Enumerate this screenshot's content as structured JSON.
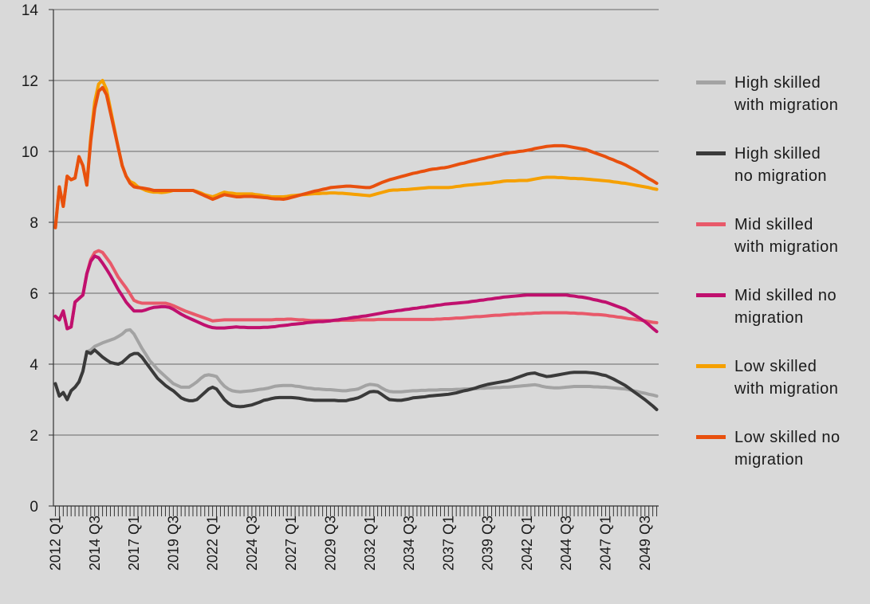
{
  "chart_data": {
    "type": "line",
    "categories": [
      "2012 Q1",
      null,
      null,
      null,
      null,
      null,
      null,
      null,
      null,
      null,
      "2014 Q3",
      null,
      null,
      null,
      null,
      null,
      null,
      null,
      null,
      null,
      "2017 Q1",
      null,
      null,
      null,
      null,
      null,
      null,
      null,
      null,
      null,
      "2019 Q3",
      null,
      null,
      null,
      null,
      null,
      null,
      null,
      null,
      null,
      "2022 Q1",
      null,
      null,
      null,
      null,
      null,
      null,
      null,
      null,
      null,
      "2024 Q3",
      null,
      null,
      null,
      null,
      null,
      null,
      null,
      null,
      null,
      "2027 Q1",
      null,
      null,
      null,
      null,
      null,
      null,
      null,
      null,
      null,
      "2029 Q3",
      null,
      null,
      null,
      null,
      null,
      null,
      null,
      null,
      null,
      "2032 Q1",
      null,
      null,
      null,
      null,
      null,
      null,
      null,
      null,
      null,
      "2034 Q3",
      null,
      null,
      null,
      null,
      null,
      null,
      null,
      null,
      null,
      "2037 Q1",
      null,
      null,
      null,
      null,
      null,
      null,
      null,
      null,
      null,
      "2039 Q3",
      null,
      null,
      null,
      null,
      null,
      null,
      null,
      null,
      null,
      "2042 Q1",
      null,
      null,
      null,
      null,
      null,
      null,
      null,
      null,
      null,
      "2044 Q3",
      null,
      null,
      null,
      null,
      null,
      null,
      null,
      null,
      null,
      "2047 Q1",
      null,
      null,
      null,
      null,
      null,
      null,
      null,
      null,
      null,
      "2049 Q3",
      null,
      null,
      null
    ],
    "ylim": [
      0,
      14
    ],
    "yticks": [
      0,
      2,
      4,
      6,
      8,
      10,
      12,
      14
    ],
    "grid": true,
    "series": [
      {
        "name": "High skilled with migration",
        "color": "#a3a3a3",
        "values": [
          3.45,
          3.1,
          3.2,
          3.0,
          3.25,
          3.35,
          3.5,
          3.8,
          4.35,
          4.4,
          4.5,
          4.55,
          4.6,
          4.64,
          4.68,
          4.72,
          4.78,
          4.85,
          4.95,
          4.97,
          4.85,
          4.65,
          4.45,
          4.28,
          4.1,
          3.98,
          3.85,
          3.75,
          3.65,
          3.55,
          3.45,
          3.4,
          3.35,
          3.35,
          3.35,
          3.42,
          3.5,
          3.6,
          3.68,
          3.7,
          3.68,
          3.65,
          3.5,
          3.38,
          3.3,
          3.25,
          3.23,
          3.22,
          3.23,
          3.24,
          3.25,
          3.27,
          3.29,
          3.3,
          3.32,
          3.35,
          3.38,
          3.39,
          3.4,
          3.4,
          3.4,
          3.38,
          3.37,
          3.35,
          3.33,
          3.32,
          3.3,
          3.3,
          3.29,
          3.28,
          3.28,
          3.27,
          3.26,
          3.25,
          3.25,
          3.27,
          3.28,
          3.3,
          3.35,
          3.4,
          3.43,
          3.42,
          3.4,
          3.33,
          3.27,
          3.23,
          3.22,
          3.22,
          3.22,
          3.23,
          3.24,
          3.25,
          3.25,
          3.26,
          3.26,
          3.27,
          3.27,
          3.27,
          3.28,
          3.28,
          3.28,
          3.28,
          3.29,
          3.29,
          3.3,
          3.3,
          3.31,
          3.31,
          3.32,
          3.32,
          3.33,
          3.33,
          3.34,
          3.34,
          3.35,
          3.35,
          3.36,
          3.37,
          3.38,
          3.39,
          3.4,
          3.41,
          3.42,
          3.4,
          3.37,
          3.35,
          3.34,
          3.33,
          3.33,
          3.34,
          3.35,
          3.36,
          3.37,
          3.37,
          3.37,
          3.37,
          3.37,
          3.36,
          3.36,
          3.35,
          3.35,
          3.34,
          3.33,
          3.32,
          3.31,
          3.3,
          3.28,
          3.25,
          3.23,
          3.2,
          3.18,
          3.15,
          3.13,
          3.1
        ]
      },
      {
        "name": "High skilled no migration",
        "color": "#3a3a3a",
        "values": [
          3.45,
          3.1,
          3.2,
          3.0,
          3.25,
          3.35,
          3.5,
          3.8,
          4.35,
          4.3,
          4.4,
          4.3,
          4.2,
          4.12,
          4.05,
          4.02,
          4.0,
          4.05,
          4.15,
          4.25,
          4.3,
          4.3,
          4.2,
          4.05,
          3.9,
          3.75,
          3.6,
          3.5,
          3.4,
          3.32,
          3.25,
          3.15,
          3.05,
          3.0,
          2.97,
          2.97,
          3.0,
          3.1,
          3.2,
          3.3,
          3.35,
          3.3,
          3.15,
          3.0,
          2.9,
          2.83,
          2.81,
          2.8,
          2.81,
          2.83,
          2.85,
          2.89,
          2.93,
          2.98,
          3.0,
          3.03,
          3.05,
          3.06,
          3.06,
          3.06,
          3.06,
          3.05,
          3.04,
          3.02,
          3.0,
          2.99,
          2.98,
          2.98,
          2.98,
          2.98,
          2.98,
          2.98,
          2.97,
          2.97,
          2.97,
          3.0,
          3.02,
          3.05,
          3.1,
          3.16,
          3.22,
          3.23,
          3.22,
          3.15,
          3.07,
          3.0,
          2.99,
          2.98,
          2.98,
          3.0,
          3.02,
          3.05,
          3.06,
          3.07,
          3.08,
          3.1,
          3.11,
          3.12,
          3.13,
          3.14,
          3.15,
          3.17,
          3.19,
          3.22,
          3.25,
          3.27,
          3.3,
          3.33,
          3.37,
          3.4,
          3.43,
          3.45,
          3.47,
          3.49,
          3.51,
          3.53,
          3.56,
          3.6,
          3.64,
          3.68,
          3.72,
          3.74,
          3.75,
          3.71,
          3.68,
          3.65,
          3.66,
          3.68,
          3.7,
          3.72,
          3.74,
          3.76,
          3.77,
          3.77,
          3.77,
          3.77,
          3.76,
          3.75,
          3.73,
          3.7,
          3.68,
          3.63,
          3.58,
          3.52,
          3.46,
          3.4,
          3.32,
          3.24,
          3.16,
          3.08,
          3.0,
          2.91,
          2.82,
          2.72
        ]
      },
      {
        "name": "Mid skilled with migration",
        "color": "#e8596a",
        "values": [
          5.35,
          5.25,
          5.5,
          5.0,
          5.05,
          5.75,
          5.85,
          5.95,
          6.55,
          6.95,
          7.15,
          7.2,
          7.15,
          7.0,
          6.85,
          6.65,
          6.45,
          6.3,
          6.15,
          5.98,
          5.8,
          5.75,
          5.72,
          5.72,
          5.72,
          5.72,
          5.72,
          5.72,
          5.72,
          5.69,
          5.65,
          5.6,
          5.55,
          5.5,
          5.46,
          5.42,
          5.38,
          5.34,
          5.3,
          5.26,
          5.22,
          5.23,
          5.24,
          5.25,
          5.25,
          5.25,
          5.25,
          5.25,
          5.25,
          5.25,
          5.25,
          5.25,
          5.25,
          5.25,
          5.25,
          5.25,
          5.26,
          5.26,
          5.26,
          5.27,
          5.27,
          5.26,
          5.25,
          5.25,
          5.24,
          5.23,
          5.23,
          5.23,
          5.23,
          5.23,
          5.23,
          5.23,
          5.23,
          5.24,
          5.24,
          5.24,
          5.24,
          5.25,
          5.25,
          5.25,
          5.25,
          5.25,
          5.26,
          5.26,
          5.26,
          5.26,
          5.26,
          5.26,
          5.26,
          5.26,
          5.26,
          5.26,
          5.26,
          5.26,
          5.26,
          5.26,
          5.26,
          5.27,
          5.27,
          5.28,
          5.28,
          5.29,
          5.3,
          5.3,
          5.31,
          5.32,
          5.33,
          5.34,
          5.34,
          5.35,
          5.36,
          5.37,
          5.38,
          5.38,
          5.39,
          5.4,
          5.41,
          5.41,
          5.42,
          5.42,
          5.43,
          5.43,
          5.44,
          5.44,
          5.45,
          5.45,
          5.45,
          5.45,
          5.45,
          5.45,
          5.45,
          5.44,
          5.44,
          5.43,
          5.43,
          5.42,
          5.41,
          5.4,
          5.4,
          5.39,
          5.38,
          5.36,
          5.35,
          5.33,
          5.32,
          5.3,
          5.28,
          5.27,
          5.25,
          5.24,
          5.22,
          5.2,
          5.18,
          5.17
        ]
      },
      {
        "name": "Mid skilled no migration",
        "color": "#c0106e",
        "values": [
          5.35,
          5.25,
          5.5,
          5.0,
          5.05,
          5.75,
          5.85,
          5.95,
          6.55,
          6.9,
          7.05,
          7.0,
          6.85,
          6.68,
          6.5,
          6.3,
          6.1,
          5.93,
          5.75,
          5.62,
          5.5,
          5.5,
          5.5,
          5.53,
          5.57,
          5.6,
          5.61,
          5.62,
          5.62,
          5.6,
          5.55,
          5.48,
          5.41,
          5.35,
          5.3,
          5.25,
          5.2,
          5.15,
          5.1,
          5.06,
          5.03,
          5.02,
          5.02,
          5.02,
          5.03,
          5.04,
          5.05,
          5.04,
          5.04,
          5.03,
          5.03,
          5.03,
          5.03,
          5.04,
          5.04,
          5.05,
          5.06,
          5.08,
          5.09,
          5.1,
          5.12,
          5.13,
          5.14,
          5.15,
          5.17,
          5.18,
          5.19,
          5.2,
          5.2,
          5.21,
          5.22,
          5.24,
          5.25,
          5.27,
          5.28,
          5.3,
          5.32,
          5.33,
          5.35,
          5.36,
          5.38,
          5.4,
          5.42,
          5.44,
          5.46,
          5.48,
          5.49,
          5.51,
          5.52,
          5.54,
          5.55,
          5.57,
          5.58,
          5.6,
          5.61,
          5.63,
          5.64,
          5.66,
          5.67,
          5.69,
          5.7,
          5.71,
          5.72,
          5.73,
          5.74,
          5.75,
          5.77,
          5.78,
          5.8,
          5.81,
          5.83,
          5.84,
          5.86,
          5.87,
          5.89,
          5.9,
          5.91,
          5.92,
          5.93,
          5.94,
          5.95,
          5.95,
          5.95,
          5.95,
          5.95,
          5.95,
          5.95,
          5.95,
          5.95,
          5.95,
          5.95,
          5.93,
          5.92,
          5.9,
          5.89,
          5.87,
          5.85,
          5.82,
          5.8,
          5.77,
          5.75,
          5.71,
          5.67,
          5.63,
          5.59,
          5.55,
          5.48,
          5.41,
          5.34,
          5.27,
          5.2,
          5.11,
          5.01,
          4.92
        ]
      },
      {
        "name": "Low skilled with migration",
        "color": "#f5a000",
        "values": [
          7.85,
          9.0,
          8.45,
          9.3,
          9.2,
          9.25,
          9.85,
          9.6,
          9.05,
          10.4,
          11.4,
          11.9,
          12.0,
          11.75,
          11.2,
          10.65,
          10.1,
          9.6,
          9.3,
          9.15,
          9.1,
          9.0,
          8.95,
          8.9,
          8.87,
          8.85,
          8.85,
          8.84,
          8.85,
          8.87,
          8.9,
          8.9,
          8.9,
          8.9,
          8.9,
          8.9,
          8.87,
          8.83,
          8.78,
          8.75,
          8.72,
          8.76,
          8.81,
          8.85,
          8.83,
          8.82,
          8.8,
          8.8,
          8.8,
          8.8,
          8.8,
          8.78,
          8.77,
          8.75,
          8.74,
          8.72,
          8.72,
          8.72,
          8.72,
          8.73,
          8.75,
          8.76,
          8.77,
          8.78,
          8.79,
          8.8,
          8.81,
          8.81,
          8.82,
          8.82,
          8.83,
          8.83,
          8.82,
          8.82,
          8.81,
          8.8,
          8.79,
          8.78,
          8.77,
          8.76,
          8.75,
          8.78,
          8.81,
          8.84,
          8.87,
          8.9,
          8.91,
          8.91,
          8.92,
          8.92,
          8.93,
          8.94,
          8.95,
          8.96,
          8.97,
          8.98,
          8.98,
          8.98,
          8.98,
          8.98,
          8.98,
          8.99,
          9.01,
          9.02,
          9.04,
          9.05,
          9.06,
          9.07,
          9.08,
          9.09,
          9.1,
          9.11,
          9.13,
          9.14,
          9.16,
          9.17,
          9.17,
          9.17,
          9.18,
          9.18,
          9.18,
          9.2,
          9.22,
          9.24,
          9.26,
          9.27,
          9.27,
          9.27,
          9.26,
          9.26,
          9.25,
          9.24,
          9.24,
          9.23,
          9.23,
          9.22,
          9.21,
          9.2,
          9.19,
          9.18,
          9.17,
          9.16,
          9.14,
          9.13,
          9.11,
          9.1,
          9.08,
          9.06,
          9.04,
          9.02,
          9.0,
          8.98,
          8.95,
          8.93
        ]
      },
      {
        "name": "Low skilled no migration",
        "color": "#e8500e",
        "values": [
          7.85,
          9.0,
          8.45,
          9.3,
          9.2,
          9.25,
          9.85,
          9.6,
          9.05,
          10.3,
          11.2,
          11.7,
          11.8,
          11.6,
          11.1,
          10.6,
          10.1,
          9.6,
          9.3,
          9.1,
          9.0,
          8.98,
          8.97,
          8.95,
          8.93,
          8.9,
          8.9,
          8.9,
          8.9,
          8.9,
          8.9,
          8.9,
          8.9,
          8.9,
          8.9,
          8.9,
          8.85,
          8.8,
          8.75,
          8.7,
          8.65,
          8.69,
          8.74,
          8.78,
          8.76,
          8.74,
          8.72,
          8.72,
          8.73,
          8.73,
          8.73,
          8.72,
          8.71,
          8.7,
          8.69,
          8.67,
          8.66,
          8.66,
          8.65,
          8.67,
          8.7,
          8.73,
          8.76,
          8.79,
          8.82,
          8.85,
          8.88,
          8.9,
          8.93,
          8.95,
          8.98,
          8.99,
          9.0,
          9.01,
          9.02,
          9.02,
          9.01,
          9.0,
          8.99,
          8.98,
          8.98,
          9.02,
          9.07,
          9.12,
          9.16,
          9.2,
          9.23,
          9.26,
          9.29,
          9.32,
          9.35,
          9.38,
          9.4,
          9.43,
          9.45,
          9.48,
          9.5,
          9.51,
          9.53,
          9.54,
          9.56,
          9.59,
          9.62,
          9.65,
          9.67,
          9.7,
          9.73,
          9.75,
          9.78,
          9.8,
          9.83,
          9.85,
          9.88,
          9.9,
          9.93,
          9.95,
          9.97,
          9.98,
          10.0,
          10.01,
          10.03,
          10.05,
          10.08,
          10.1,
          10.12,
          10.14,
          10.15,
          10.16,
          10.16,
          10.16,
          10.15,
          10.13,
          10.11,
          10.09,
          10.07,
          10.05,
          10.01,
          9.97,
          9.93,
          9.89,
          9.85,
          9.8,
          9.76,
          9.71,
          9.67,
          9.62,
          9.56,
          9.5,
          9.44,
          9.37,
          9.3,
          9.23,
          9.17,
          9.1
        ]
      }
    ]
  }
}
